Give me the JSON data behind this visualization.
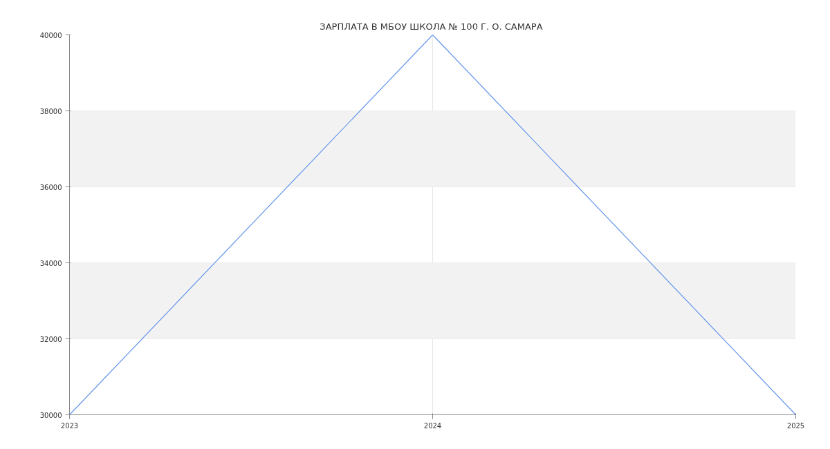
{
  "chart_data": {
    "type": "line",
    "title": "ЗАРПЛАТА В МБОУ ШКОЛА № 100  Г. О. САМАРА",
    "x": [
      2023,
      2024,
      2025
    ],
    "series": [
      {
        "color": "#6495ed",
        "values": [
          30000,
          40000,
          30000
        ]
      }
    ],
    "xlim": [
      2023,
      2025
    ],
    "xticks": [
      2023,
      2024,
      2025
    ],
    "ylim": [
      30000,
      40000
    ],
    "yticks": [
      30000,
      32000,
      34000,
      36000,
      38000,
      40000
    ],
    "bands": [
      {
        "axis": "y",
        "from": 32000,
        "to": 34000,
        "color": "#f2f2f2"
      },
      {
        "axis": "y",
        "from": 36000,
        "to": 38000,
        "color": "#f2f2f2"
      }
    ],
    "grid": true,
    "marker": "none",
    "line_style": "solid"
  }
}
